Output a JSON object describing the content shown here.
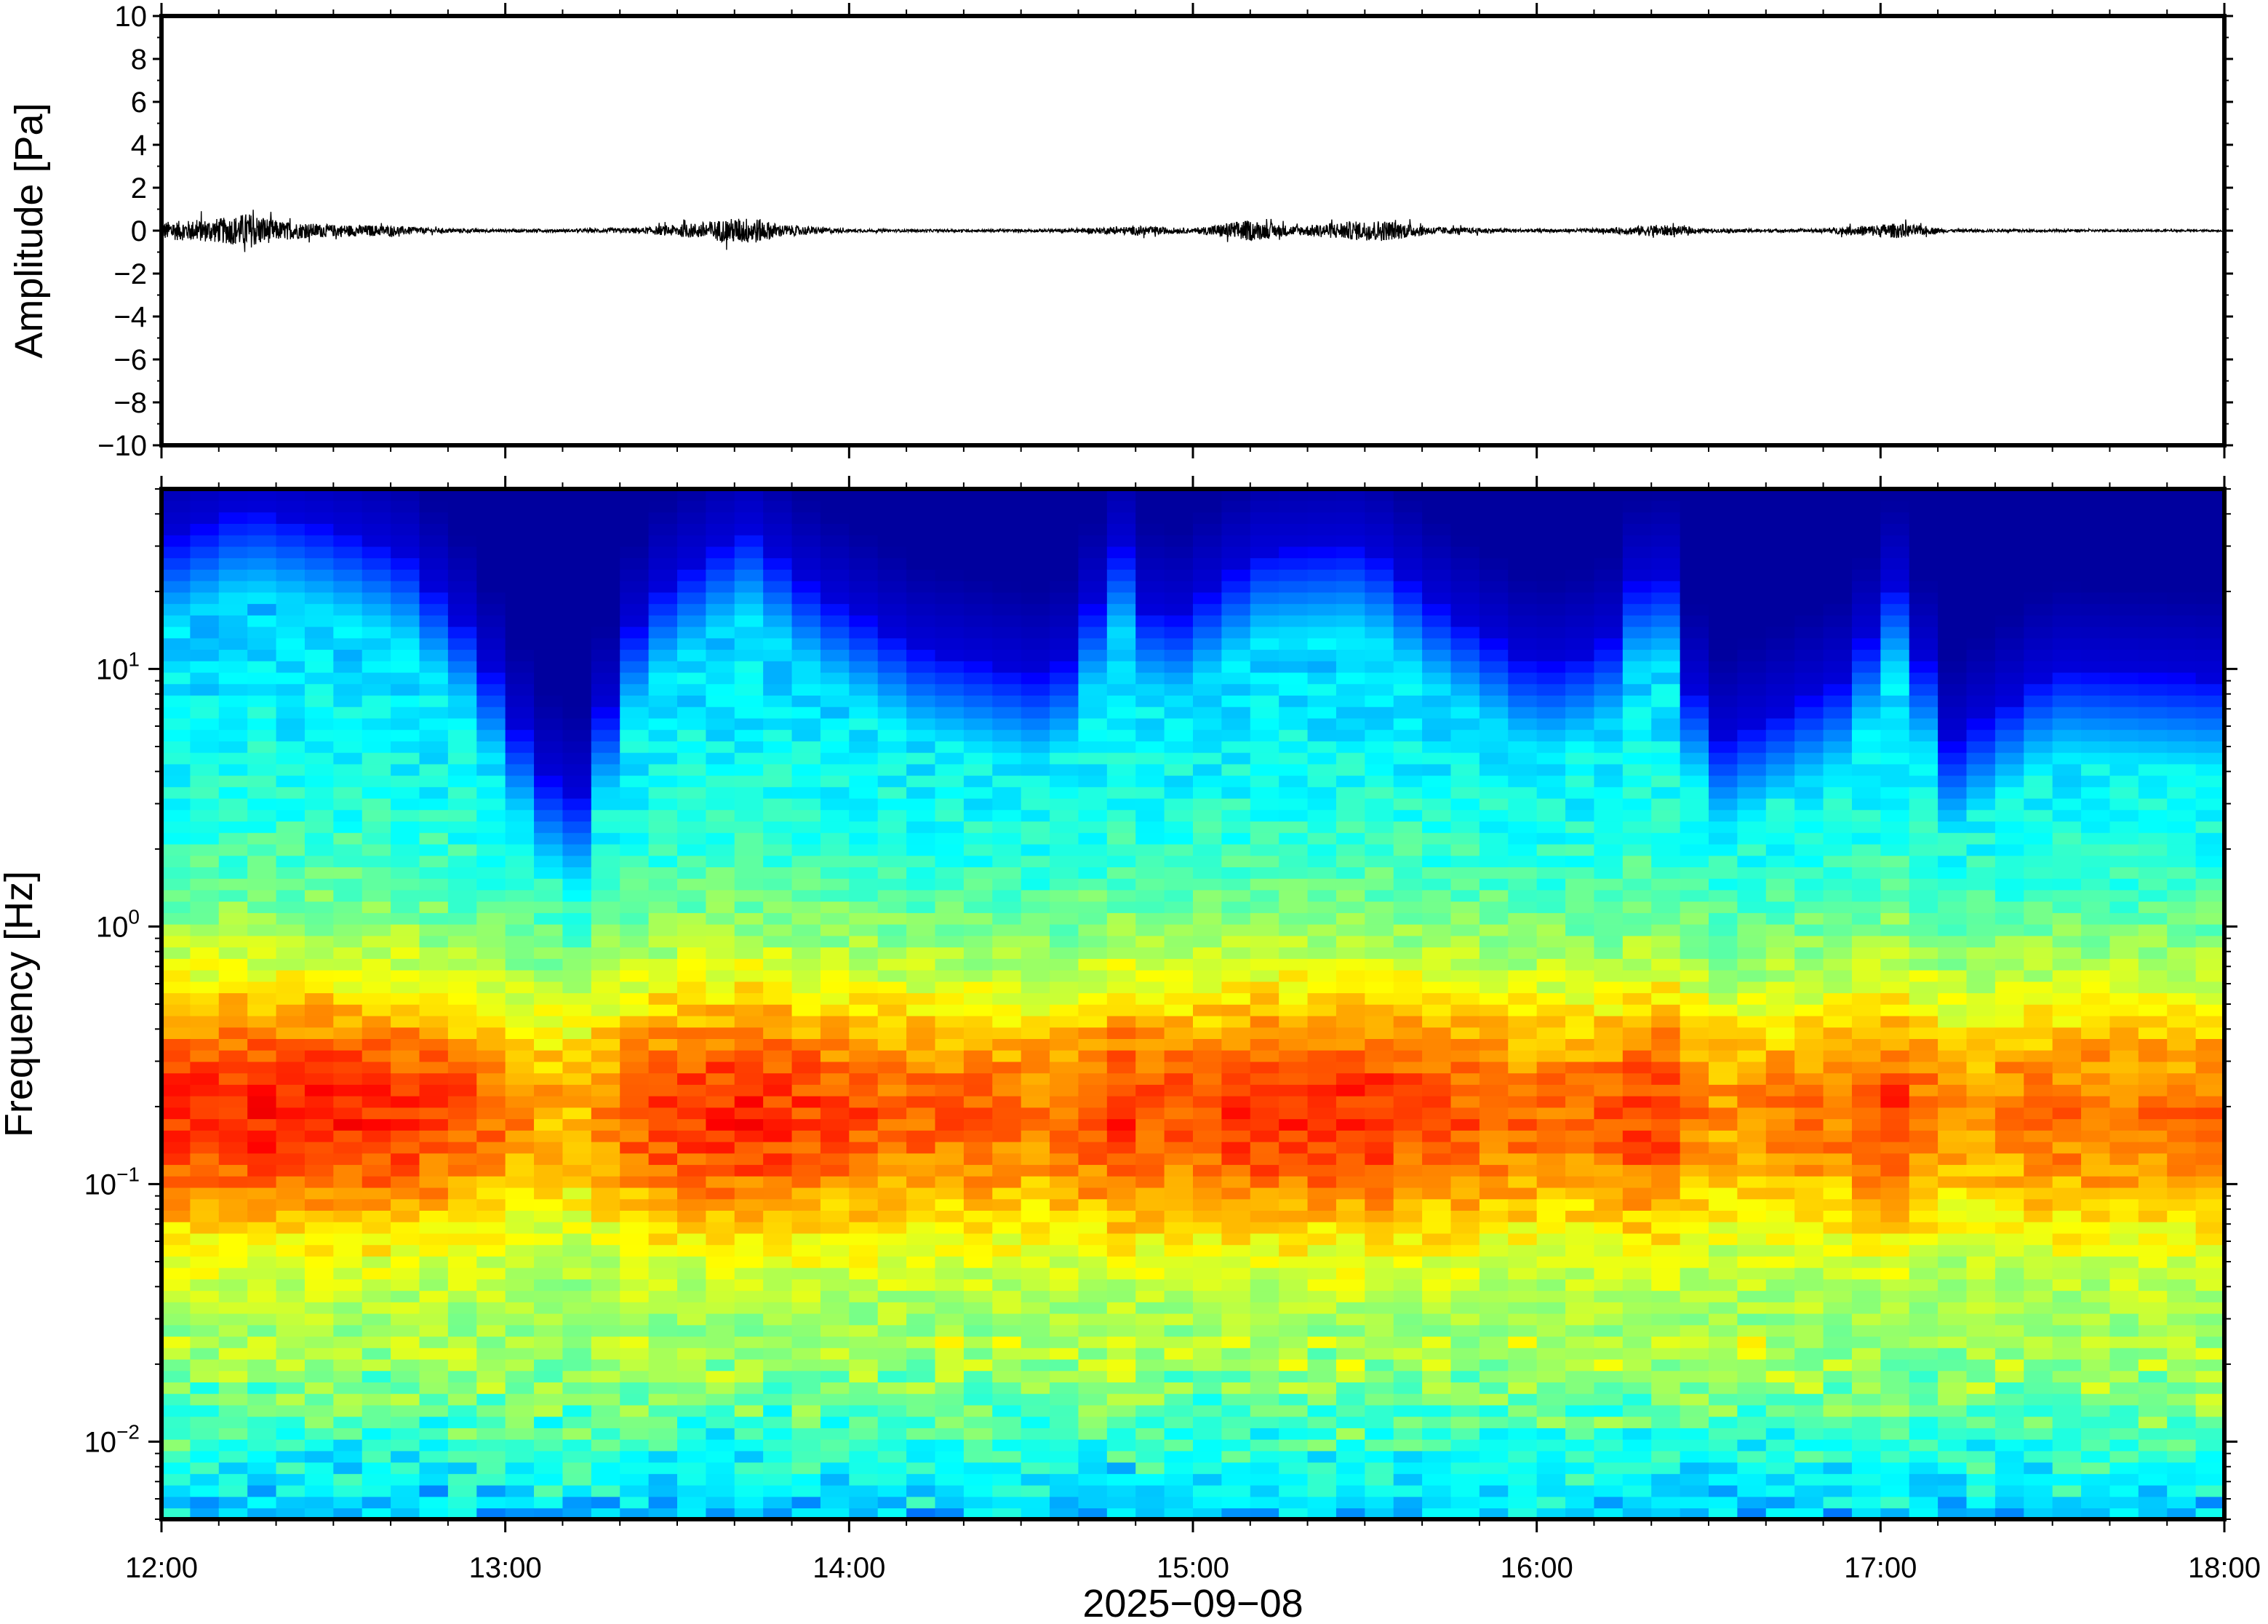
{
  "chart_data": [
    {
      "type": "line",
      "title": "",
      "ylabel": "Amplitude [Pa]",
      "xlabel": "",
      "ylim": [
        -10,
        10
      ],
      "yticks": [
        "10",
        "8",
        "6",
        "4",
        "2",
        "0",
        "−2",
        "−4",
        "−6",
        "−8",
        "−10"
      ],
      "yticks_values": [
        10,
        8,
        6,
        4,
        2,
        0,
        -2,
        -4,
        -6,
        -8,
        -10
      ],
      "xlim": [
        "12:00",
        "18:00"
      ],
      "series": [
        {
          "x_hours": [
            12.0,
            12.1,
            12.2,
            12.25,
            12.35,
            12.5,
            12.65,
            12.8,
            13.0,
            13.2,
            13.4,
            13.55,
            13.65,
            13.72,
            13.8,
            14.0,
            14.3,
            14.6,
            14.85,
            15.0,
            15.15,
            15.3,
            15.45,
            15.55,
            15.7,
            16.0,
            16.2,
            16.35,
            16.5,
            16.8,
            17.05,
            17.2,
            17.5,
            18.0
          ],
          "envelope_pa": [
            0.6,
            0.7,
            0.9,
            1.2,
            0.6,
            0.4,
            0.35,
            0.15,
            0.1,
            0.1,
            0.2,
            0.5,
            0.8,
            0.9,
            0.4,
            0.1,
            0.08,
            0.1,
            0.3,
            0.15,
            0.7,
            0.3,
            0.6,
            0.7,
            0.25,
            0.1,
            0.15,
            0.4,
            0.12,
            0.1,
            0.5,
            0.1,
            0.08,
            0.06
          ]
        }
      ]
    },
    {
      "type": "heatmap",
      "title": "",
      "ylabel": "Frequency [Hz]",
      "xlabel": "2025−09−08",
      "yscale": "log",
      "ylim": [
        0.005,
        50
      ],
      "yticks": [
        {
          "base": "10",
          "exp": "1",
          "value": 10
        },
        {
          "base": "10",
          "exp": "0",
          "value": 1
        },
        {
          "base": "10",
          "exp": "−1",
          "value": 0.1
        },
        {
          "base": "10",
          "exp": "−2",
          "value": 0.01
        }
      ],
      "xticks": [
        "12:00",
        "13:00",
        "14:00",
        "15:00",
        "16:00",
        "17:00",
        "18:00"
      ],
      "xlim": [
        "12:00",
        "18:00"
      ],
      "colormap": "jet",
      "activity": {
        "x_hours": [
          12.0,
          12.25,
          12.5,
          12.7,
          12.9,
          13.1,
          13.2,
          13.4,
          13.7,
          13.9,
          14.2,
          14.6,
          14.8,
          14.9,
          15.2,
          15.5,
          15.7,
          16.0,
          16.2,
          16.35,
          16.5,
          16.9,
          17.05,
          17.2,
          17.5,
          18.0
        ],
        "ceiling_hz": [
          30,
          42,
          35,
          28,
          14,
          4,
          3,
          18,
          35,
          20,
          12,
          9,
          30,
          14,
          28,
          30,
          18,
          10,
          12,
          30,
          5,
          9,
          22,
          5,
          10,
          9
        ],
        "band_peak_hz": [
          0.2,
          0.2,
          0.2,
          0.2,
          0.2,
          0.2,
          0.2,
          0.2,
          0.2,
          0.2,
          0.2,
          0.2,
          0.2,
          0.2,
          0.2,
          0.2,
          0.2,
          0.2,
          0.2,
          0.2,
          0.2,
          0.2,
          0.2,
          0.2,
          0.2,
          0.2
        ]
      }
    }
  ]
}
